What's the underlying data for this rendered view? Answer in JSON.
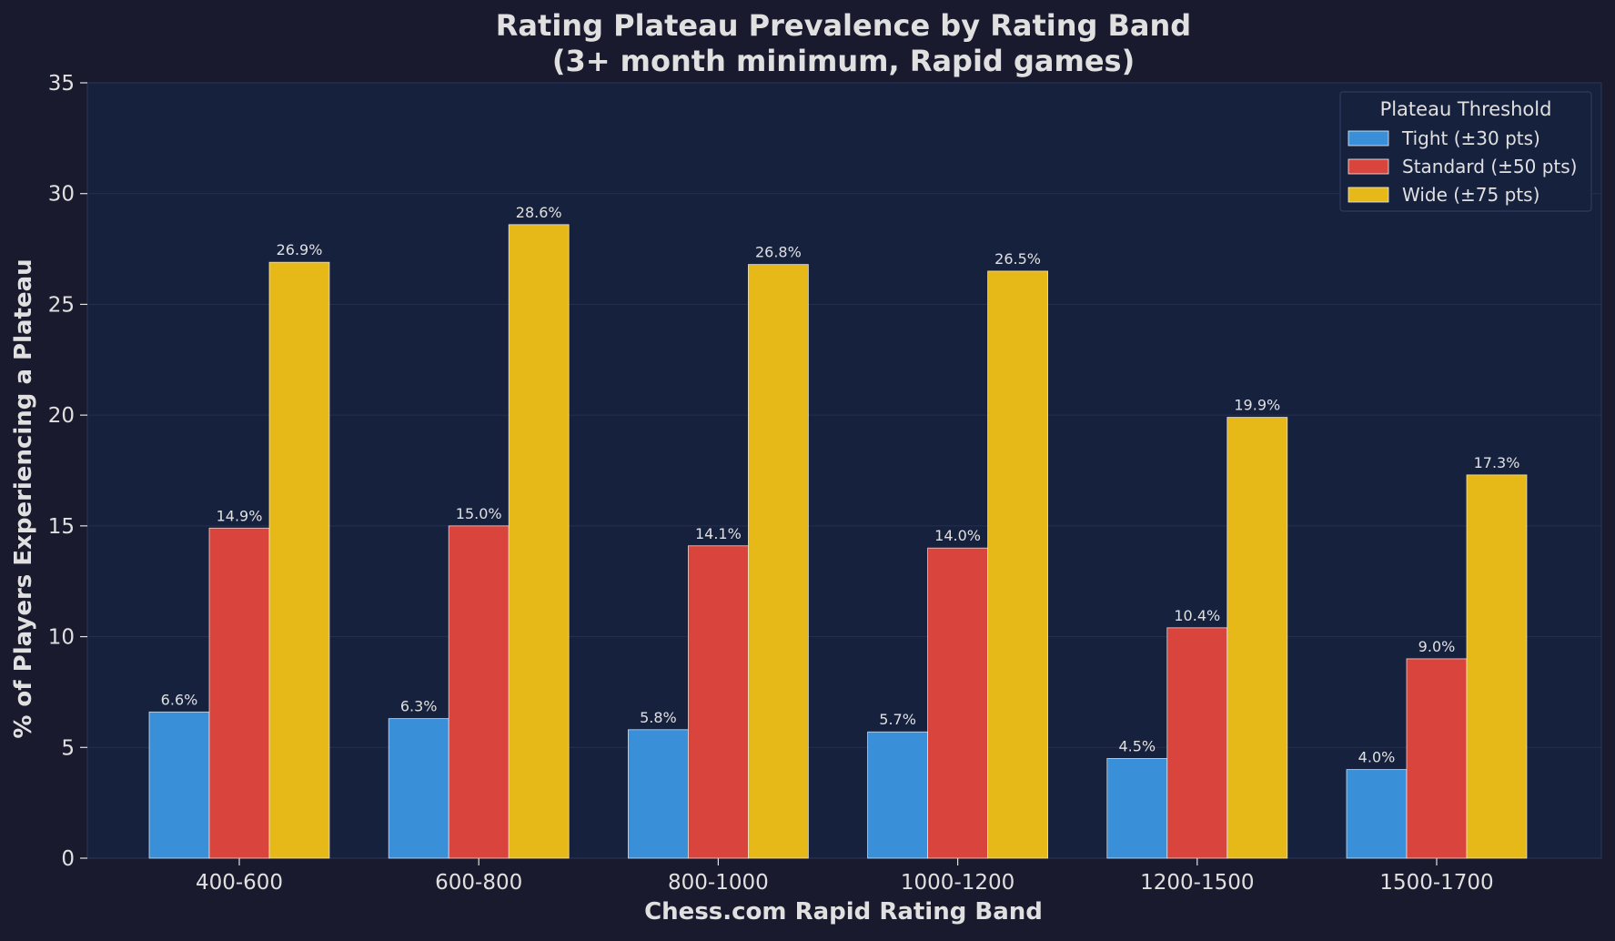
{
  "chart_data": {
    "type": "bar",
    "title_line1": "Rating Plateau Prevalence by Rating Band",
    "title_line2": "(3+ month minimum, Rapid games)",
    "xlabel": "Chess.com Rapid Rating Band",
    "ylabel": "% of Players Experiencing a Plateau",
    "categories": [
      "400-600",
      "600-800",
      "800-1000",
      "1000-1200",
      "1200-1500",
      "1500-1700"
    ],
    "ylim": [
      0,
      35
    ],
    "yticks": [
      0,
      5,
      10,
      15,
      20,
      25,
      30,
      35
    ],
    "grid": true,
    "legend": {
      "title": "Plateau Threshold",
      "placement": "top-right"
    },
    "series": [
      {
        "name": "Tight (±30 pts)",
        "color": "#3a8fd9",
        "values": [
          6.6,
          6.3,
          5.8,
          5.7,
          4.5,
          4.0
        ],
        "labels": [
          "6.6%",
          "6.3%",
          "5.8%",
          "5.7%",
          "4.5%",
          "4.0%"
        ]
      },
      {
        "name": "Standard (±50 pts)",
        "color": "#d9453d",
        "values": [
          14.9,
          15.0,
          14.1,
          14.0,
          10.4,
          9.0
        ],
        "labels": [
          "14.9%",
          "15.0%",
          "14.1%",
          "14.0%",
          "10.4%",
          "9.0%"
        ]
      },
      {
        "name": "Wide (±75 pts)",
        "color": "#e6b818",
        "values": [
          26.9,
          28.6,
          26.8,
          26.5,
          19.9,
          17.3
        ],
        "labels": [
          "26.9%",
          "28.6%",
          "26.8%",
          "26.5%",
          "19.9%",
          "17.3%"
        ]
      }
    ],
    "colors": {
      "background": "#1a1a2e",
      "plot_background": "#16213e",
      "text": "#e0e0e0"
    }
  }
}
